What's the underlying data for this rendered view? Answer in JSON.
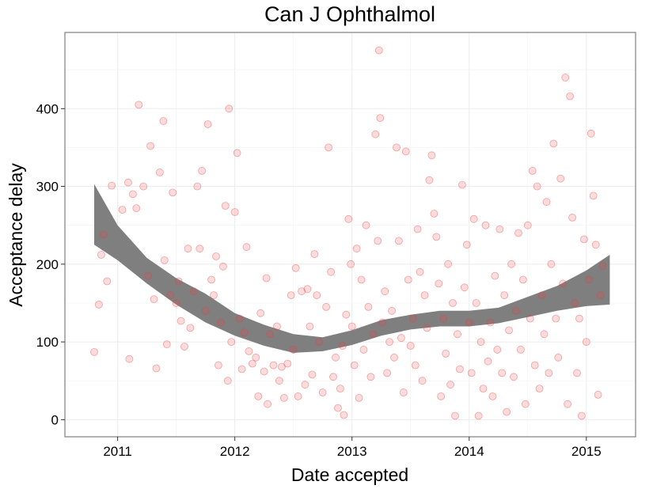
{
  "chart_data": {
    "type": "scatter",
    "title": "Can J Ophthalmol",
    "xlabel": "Date accepted",
    "ylabel": "Acceptance delay",
    "xlim": [
      2010.55,
      2015.42
    ],
    "ylim": [
      -22,
      498
    ],
    "x_ticks": [
      2011,
      2012,
      2013,
      2014,
      2015
    ],
    "x_tick_labels": [
      "2011",
      "2012",
      "2013",
      "2014",
      "2015"
    ],
    "y_ticks": [
      0,
      100,
      200,
      300,
      400
    ],
    "y_tick_labels": [
      "0",
      "100",
      "200",
      "300",
      "400"
    ],
    "grid": true,
    "point_color": "#ef3b3b",
    "point_alpha": 0.18,
    "smooth_color": "#7f7f7f",
    "points": [
      [
        2010.8,
        87
      ],
      [
        2010.84,
        148
      ],
      [
        2010.86,
        212
      ],
      [
        2010.88,
        238
      ],
      [
        2010.91,
        178
      ],
      [
        2010.95,
        301
      ],
      [
        2011.04,
        270
      ],
      [
        2011.09,
        305
      ],
      [
        2011.1,
        78
      ],
      [
        2011.13,
        290
      ],
      [
        2011.16,
        272
      ],
      [
        2011.18,
        405
      ],
      [
        2011.22,
        300
      ],
      [
        2011.26,
        185
      ],
      [
        2011.28,
        352
      ],
      [
        2011.31,
        155
      ],
      [
        2011.33,
        66
      ],
      [
        2011.36,
        318
      ],
      [
        2011.39,
        384
      ],
      [
        2011.4,
        205
      ],
      [
        2011.42,
        97
      ],
      [
        2011.45,
        160
      ],
      [
        2011.47,
        292
      ],
      [
        2011.5,
        150
      ],
      [
        2011.52,
        178
      ],
      [
        2011.54,
        127
      ],
      [
        2011.57,
        94
      ],
      [
        2011.6,
        220
      ],
      [
        2011.62,
        118
      ],
      [
        2011.65,
        165
      ],
      [
        2011.68,
        300
      ],
      [
        2011.7,
        220
      ],
      [
        2011.72,
        320
      ],
      [
        2011.75,
        140
      ],
      [
        2011.77,
        380
      ],
      [
        2011.8,
        180
      ],
      [
        2011.82,
        160
      ],
      [
        2011.84,
        210
      ],
      [
        2011.86,
        70
      ],
      [
        2011.88,
        125
      ],
      [
        2011.9,
        197
      ],
      [
        2011.92,
        275
      ],
      [
        2011.94,
        50
      ],
      [
        2011.95,
        400
      ],
      [
        2011.97,
        100
      ],
      [
        2012.0,
        267
      ],
      [
        2012.02,
        343
      ],
      [
        2012.04,
        130
      ],
      [
        2012.06,
        65
      ],
      [
        2012.08,
        112
      ],
      [
        2012.1,
        222
      ],
      [
        2012.12,
        88
      ],
      [
        2012.15,
        72
      ],
      [
        2012.18,
        80
      ],
      [
        2012.2,
        30
      ],
      [
        2012.22,
        137
      ],
      [
        2012.25,
        62
      ],
      [
        2012.27,
        182
      ],
      [
        2012.28,
        20
      ],
      [
        2012.3,
        110
      ],
      [
        2012.33,
        70
      ],
      [
        2012.36,
        120
      ],
      [
        2012.38,
        50
      ],
      [
        2012.4,
        68
      ],
      [
        2012.42,
        28
      ],
      [
        2012.45,
        72
      ],
      [
        2012.48,
        160
      ],
      [
        2012.5,
        90
      ],
      [
        2012.52,
        195
      ],
      [
        2012.54,
        30
      ],
      [
        2012.57,
        165
      ],
      [
        2012.6,
        45
      ],
      [
        2012.62,
        168
      ],
      [
        2012.64,
        120
      ],
      [
        2012.66,
        58
      ],
      [
        2012.68,
        213
      ],
      [
        2012.7,
        160
      ],
      [
        2012.72,
        100
      ],
      [
        2012.75,
        35
      ],
      [
        2012.78,
        145
      ],
      [
        2012.8,
        350
      ],
      [
        2012.82,
        190
      ],
      [
        2012.84,
        55
      ],
      [
        2012.86,
        80
      ],
      [
        2012.88,
        15
      ],
      [
        2012.9,
        40
      ],
      [
        2012.92,
        95
      ],
      [
        2012.93,
        6
      ],
      [
        2012.95,
        135
      ],
      [
        2012.97,
        258
      ],
      [
        2012.99,
        200
      ],
      [
        2013.0,
        120
      ],
      [
        2013.02,
        70
      ],
      [
        2013.04,
        220
      ],
      [
        2013.06,
        28
      ],
      [
        2013.08,
        180
      ],
      [
        2013.1,
        90
      ],
      [
        2013.12,
        250
      ],
      [
        2013.14,
        145
      ],
      [
        2013.16,
        55
      ],
      [
        2013.18,
        110
      ],
      [
        2013.2,
        367
      ],
      [
        2013.22,
        230
      ],
      [
        2013.23,
        475
      ],
      [
        2013.24,
        388
      ],
      [
        2013.26,
        125
      ],
      [
        2013.28,
        165
      ],
      [
        2013.3,
        60
      ],
      [
        2013.32,
        100
      ],
      [
        2013.34,
        140
      ],
      [
        2013.36,
        80
      ],
      [
        2013.38,
        350
      ],
      [
        2013.4,
        230
      ],
      [
        2013.42,
        105
      ],
      [
        2013.44,
        35
      ],
      [
        2013.46,
        345
      ],
      [
        2013.48,
        180
      ],
      [
        2013.5,
        95
      ],
      [
        2013.52,
        130
      ],
      [
        2013.54,
        70
      ],
      [
        2013.56,
        245
      ],
      [
        2013.58,
        190
      ],
      [
        2013.6,
        50
      ],
      [
        2013.62,
        160
      ],
      [
        2013.64,
        118
      ],
      [
        2013.66,
        308
      ],
      [
        2013.68,
        340
      ],
      [
        2013.7,
        265
      ],
      [
        2013.72,
        235
      ],
      [
        2013.74,
        175
      ],
      [
        2013.76,
        30
      ],
      [
        2013.78,
        130
      ],
      [
        2013.8,
        85
      ],
      [
        2013.82,
        200
      ],
      [
        2013.84,
        45
      ],
      [
        2013.86,
        150
      ],
      [
        2013.88,
        5
      ],
      [
        2013.9,
        110
      ],
      [
        2013.92,
        65
      ],
      [
        2013.94,
        302
      ],
      [
        2013.96,
        170
      ],
      [
        2013.98,
        225
      ],
      [
        2014.0,
        125
      ],
      [
        2014.02,
        60
      ],
      [
        2014.04,
        258
      ],
      [
        2014.06,
        150
      ],
      [
        2014.08,
        5
      ],
      [
        2014.1,
        100
      ],
      [
        2014.12,
        40
      ],
      [
        2014.14,
        250
      ],
      [
        2014.16,
        75
      ],
      [
        2014.18,
        125
      ],
      [
        2014.2,
        30
      ],
      [
        2014.22,
        185
      ],
      [
        2014.24,
        90
      ],
      [
        2014.26,
        245
      ],
      [
        2014.28,
        60
      ],
      [
        2014.3,
        160
      ],
      [
        2014.32,
        10
      ],
      [
        2014.34,
        115
      ],
      [
        2014.36,
        200
      ],
      [
        2014.38,
        55
      ],
      [
        2014.4,
        140
      ],
      [
        2014.42,
        240
      ],
      [
        2014.44,
        90
      ],
      [
        2014.46,
        180
      ],
      [
        2014.48,
        20
      ],
      [
        2014.5,
        250
      ],
      [
        2014.52,
        130
      ],
      [
        2014.54,
        320
      ],
      [
        2014.56,
        70
      ],
      [
        2014.58,
        300
      ],
      [
        2014.6,
        40
      ],
      [
        2014.62,
        160
      ],
      [
        2014.64,
        110
      ],
      [
        2014.66,
        280
      ],
      [
        2014.68,
        60
      ],
      [
        2014.7,
        200
      ],
      [
        2014.72,
        355
      ],
      [
        2014.74,
        130
      ],
      [
        2014.76,
        80
      ],
      [
        2014.78,
        310
      ],
      [
        2014.8,
        175
      ],
      [
        2014.82,
        440
      ],
      [
        2014.84,
        20
      ],
      [
        2014.86,
        416
      ],
      [
        2014.88,
        260
      ],
      [
        2014.9,
        150
      ],
      [
        2014.92,
        60
      ],
      [
        2014.94,
        130
      ],
      [
        2014.96,
        5
      ],
      [
        2014.98,
        232
      ],
      [
        2015.0,
        100
      ],
      [
        2015.02,
        180
      ],
      [
        2015.04,
        368
      ],
      [
        2015.06,
        288
      ],
      [
        2015.08,
        225
      ],
      [
        2015.1,
        32
      ],
      [
        2015.12,
        160
      ],
      [
        2015.14,
        198
      ]
    ],
    "smooth_band": {
      "x": [
        2010.8,
        2011.0,
        2011.25,
        2011.5,
        2011.75,
        2012.0,
        2012.25,
        2012.5,
        2012.75,
        2013.0,
        2013.25,
        2013.5,
        2013.75,
        2014.0,
        2014.25,
        2014.5,
        2014.75,
        2015.0,
        2015.2
      ],
      "lower": [
        225,
        205,
        175,
        148,
        125,
        108,
        95,
        86,
        88,
        96,
        108,
        116,
        120,
        120,
        124,
        132,
        140,
        146,
        148
      ],
      "upper": [
        303,
        250,
        208,
        182,
        162,
        137,
        122,
        110,
        106,
        115,
        128,
        135,
        140,
        140,
        144,
        158,
        172,
        192,
        212
      ]
    }
  }
}
